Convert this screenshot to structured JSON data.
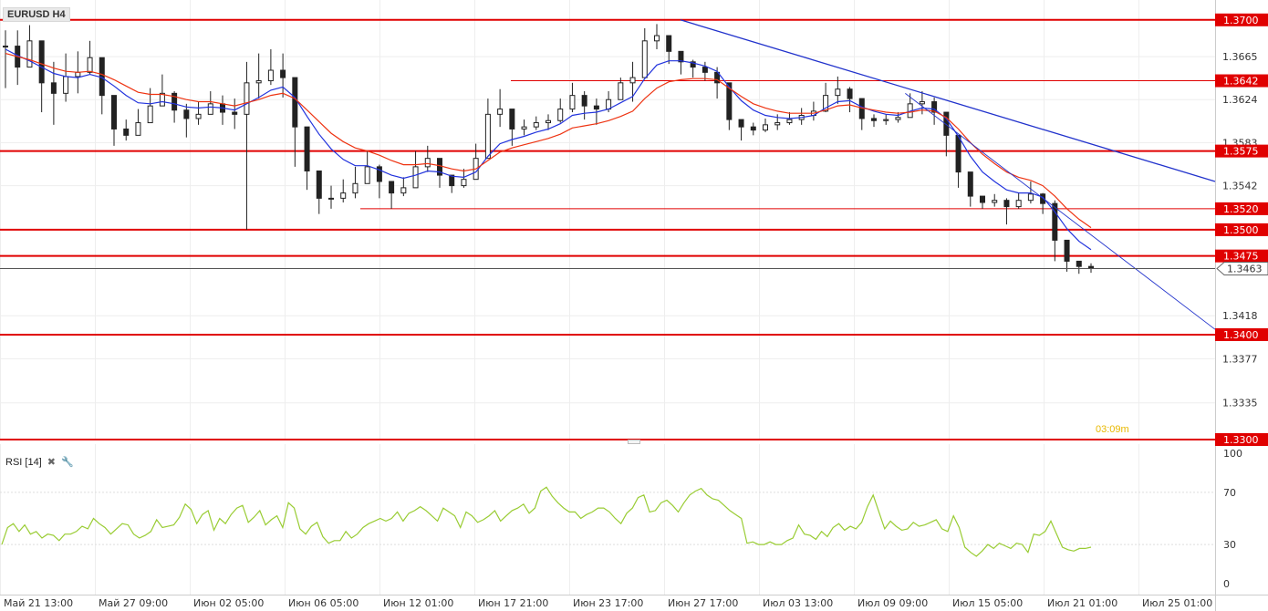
{
  "symbol": "EURUSD H4",
  "timer": "03:09m",
  "rsi": {
    "label": "RSI [14]",
    "close_icon": "close-icon",
    "settings_icon": "wrench-icon",
    "ticks": [
      "100",
      "70",
      "30",
      "0"
    ]
  },
  "time_labels": [
    "Май 21 13:00",
    "Май 27 09:00",
    "Июн 02 05:00",
    "Июн 06 05:00",
    "Июн 12 01:00",
    "Июн 17 21:00",
    "Июн 23 17:00",
    "Июн 27 17:00",
    "Июл 03 13:00",
    "Июл 09 09:00",
    "Июл 15 05:00",
    "Июл 21 01:00",
    "Июл 25 01:00"
  ],
  "price_ticks": [
    "1.3665",
    "1.3624",
    "1.3583",
    "1.3542",
    "1.3418",
    "1.3377",
    "1.3335"
  ],
  "level_labels": [
    "1.3700",
    "1.3642",
    "1.3575",
    "1.3520",
    "1.3500",
    "1.3475",
    "1.3400",
    "1.3300"
  ],
  "current_price": "1.3463",
  "colors": {
    "level": "#e00000",
    "trendline": "#2233cc",
    "ma_fast": "#2233dd",
    "ma_slow": "#ee3311",
    "rsi_line": "#99cc33",
    "timer": "#e8b800"
  },
  "chart_data": {
    "type": "candlestick",
    "series": [
      {
        "name": "EURUSD H4",
        "value_points": [
          [
            1.369,
            1.3675,
            1.3635
          ],
          [
            1.369,
            1.3655,
            1.3638
          ],
          [
            1.3695,
            1.368,
            1.366
          ],
          [
            1.367,
            1.364,
            1.3612
          ],
          [
            1.366,
            1.363,
            1.36
          ],
          [
            1.3668,
            1.3646,
            1.3622
          ],
          [
            1.367,
            1.365,
            1.363
          ],
          [
            1.368,
            1.3664,
            1.3648
          ],
          [
            1.3652,
            1.3628,
            1.361
          ],
          [
            1.3618,
            1.3596,
            1.358
          ],
          [
            1.3605,
            1.359,
            1.3585
          ],
          [
            1.3615,
            1.3602,
            1.3594
          ],
          [
            1.3635,
            1.3618,
            1.3605
          ],
          [
            1.3648,
            1.363,
            1.3622
          ],
          [
            1.3632,
            1.3614,
            1.3602
          ],
          [
            1.362,
            1.3606,
            1.3588
          ],
          [
            1.3622,
            1.361,
            1.36
          ],
          [
            1.3632,
            1.362,
            1.3612
          ],
          [
            1.3628,
            1.3612,
            1.36
          ],
          [
            1.3625,
            1.361,
            1.3596
          ],
          [
            1.366,
            1.364,
            1.35
          ],
          [
            1.3668,
            1.3642,
            1.3625
          ],
          [
            1.3672,
            1.3652,
            1.3638
          ],
          [
            1.3668,
            1.3645,
            1.3626
          ],
          [
            1.3634,
            1.3598,
            1.356
          ],
          [
            1.358,
            1.3556,
            1.3538
          ],
          [
            1.355,
            1.353,
            1.3515
          ],
          [
            1.3542,
            1.353,
            1.352
          ],
          [
            1.3548,
            1.3535,
            1.3526
          ],
          [
            1.356,
            1.3544,
            1.353
          ],
          [
            1.3575,
            1.356,
            1.3548
          ],
          [
            1.3562,
            1.3546,
            1.353
          ],
          [
            1.3546,
            1.3535,
            1.352
          ],
          [
            1.355,
            1.354,
            1.3532
          ],
          [
            1.3575,
            1.356,
            1.3545
          ],
          [
            1.358,
            1.3568,
            1.3555
          ],
          [
            1.3566,
            1.3552,
            1.354
          ],
          [
            1.355,
            1.3542,
            1.3535
          ],
          [
            1.3558,
            1.3548,
            1.354
          ],
          [
            1.3582,
            1.3568,
            1.3552
          ],
          [
            1.3625,
            1.361,
            1.357
          ],
          [
            1.3634,
            1.3615,
            1.3598
          ],
          [
            1.361,
            1.3596,
            1.358
          ],
          [
            1.3605,
            1.3598,
            1.359
          ],
          [
            1.3608,
            1.3602,
            1.3595
          ],
          [
            1.361,
            1.3604,
            1.3595
          ],
          [
            1.3625,
            1.3615,
            1.3602
          ],
          [
            1.364,
            1.3628,
            1.3612
          ],
          [
            1.3632,
            1.3618,
            1.3605
          ],
          [
            1.3625,
            1.3615,
            1.36
          ],
          [
            1.3632,
            1.3624,
            1.3612
          ],
          [
            1.3645,
            1.364,
            1.363
          ],
          [
            1.366,
            1.3645,
            1.3622
          ],
          [
            1.3692,
            1.368,
            1.366
          ],
          [
            1.3696,
            1.3685,
            1.3672
          ],
          [
            1.3685,
            1.367,
            1.3658
          ],
          [
            1.3666,
            1.366,
            1.3648
          ],
          [
            1.3662,
            1.3655,
            1.3645
          ],
          [
            1.366,
            1.365,
            1.3642
          ],
          [
            1.3655,
            1.364,
            1.3625
          ],
          [
            1.362,
            1.3605,
            1.3595
          ],
          [
            1.3605,
            1.3598,
            1.3585
          ],
          [
            1.3602,
            1.3595,
            1.359
          ],
          [
            1.3606,
            1.36,
            1.3593
          ],
          [
            1.361,
            1.3602,
            1.3595
          ],
          [
            1.3612,
            1.3605,
            1.36
          ],
          [
            1.3616,
            1.3609,
            1.36
          ],
          [
            1.3622,
            1.3613,
            1.3604
          ],
          [
            1.364,
            1.3628,
            1.3612
          ],
          [
            1.3646,
            1.3634,
            1.362
          ],
          [
            1.3636,
            1.3625,
            1.3612
          ],
          [
            1.3618,
            1.3606,
            1.3595
          ],
          [
            1.361,
            1.3604,
            1.3598
          ],
          [
            1.361,
            1.3605,
            1.36
          ],
          [
            1.3612,
            1.3607,
            1.3602
          ],
          [
            1.363,
            1.362,
            1.3608
          ],
          [
            1.3632,
            1.3622,
            1.361
          ],
          [
            1.3626,
            1.3612,
            1.36
          ],
          [
            1.3612,
            1.359,
            1.357
          ],
          [
            1.3572,
            1.3555,
            1.354
          ],
          [
            1.3545,
            1.3532,
            1.3522
          ],
          [
            1.3532,
            1.3526,
            1.352
          ],
          [
            1.3534,
            1.3528,
            1.3522
          ],
          [
            1.353,
            1.3522,
            1.3505
          ],
          [
            1.3535,
            1.3528,
            1.352
          ],
          [
            1.3546,
            1.3534,
            1.3525
          ],
          [
            1.3535,
            1.3525,
            1.3515
          ],
          [
            1.3528,
            1.349,
            1.347
          ],
          [
            1.3485,
            1.347,
            1.346
          ],
          [
            1.347,
            1.3465,
            1.3458
          ],
          [
            1.3468,
            1.3463,
            1.3459
          ]
        ]
      }
    ],
    "moving_averages": [
      {
        "values": [
          1.3672,
          1.3666,
          1.3661,
          1.3655,
          1.3649,
          1.3646,
          1.3645,
          1.3648,
          1.3645,
          1.3637,
          1.3628,
          1.3621,
          1.362,
          1.3622,
          1.362,
          1.3617,
          1.3616,
          1.3617,
          1.3616,
          1.3614,
          1.362,
          1.3626,
          1.3633,
          1.3636,
          1.3626,
          1.3608,
          1.3591,
          1.3577,
          1.3567,
          1.3561,
          1.3561,
          1.3557,
          1.3552,
          1.3549,
          1.3552,
          1.3556,
          1.3555,
          1.3551,
          1.355,
          1.3555,
          1.357,
          1.3582,
          1.3586,
          1.3589,
          1.3593,
          1.3596,
          1.3601,
          1.3609,
          1.3611,
          1.3612,
          1.3615,
          1.3621,
          1.3627,
          1.3644,
          1.3657,
          1.3661,
          1.3661,
          1.3659,
          1.3656,
          1.3651,
          1.3636,
          1.3623,
          1.3614,
          1.3609,
          1.3607,
          1.3606,
          1.3607,
          1.3609,
          1.3616,
          1.3622,
          1.3623,
          1.3617,
          1.3613,
          1.361,
          1.3609,
          1.3613,
          1.3616,
          1.3615,
          1.3606,
          1.3589,
          1.357,
          1.3555,
          1.3546,
          1.3538,
          1.3535,
          1.3535,
          1.3531,
          1.3517,
          1.3501,
          1.3489,
          1.3481
        ]
      },
      {
        "values": [
          1.3668,
          1.3665,
          1.3662,
          1.3658,
          1.3654,
          1.3651,
          1.365,
          1.3651,
          1.3648,
          1.3643,
          1.3637,
          1.3631,
          1.3629,
          1.3629,
          1.3627,
          1.3624,
          1.3622,
          1.3622,
          1.362,
          1.3618,
          1.3621,
          1.3624,
          1.3628,
          1.363,
          1.3625,
          1.3614,
          1.3603,
          1.3592,
          1.3584,
          1.3578,
          1.3575,
          1.3571,
          1.3566,
          1.3562,
          1.3562,
          1.3563,
          1.3561,
          1.3558,
          1.3556,
          1.3558,
          1.3566,
          1.3574,
          1.3578,
          1.3581,
          1.3584,
          1.3587,
          1.3591,
          1.3597,
          1.3599,
          1.3601,
          1.3604,
          1.3608,
          1.3613,
          1.3625,
          1.3635,
          1.3641,
          1.3643,
          1.3644,
          1.3644,
          1.3643,
          1.3635,
          1.3627,
          1.362,
          1.3616,
          1.3613,
          1.3611,
          1.3611,
          1.3611,
          1.3614,
          1.3618,
          1.3619,
          1.3616,
          1.3614,
          1.3612,
          1.3611,
          1.3612,
          1.3614,
          1.3613,
          1.3607,
          1.3596,
          1.3583,
          1.3572,
          1.3563,
          1.3555,
          1.355,
          1.3547,
          1.3542,
          1.3532,
          1.352,
          1.351,
          1.3502
        ]
      }
    ],
    "horizontal_levels": [
      1.37,
      1.3642,
      1.3575,
      1.352,
      1.35,
      1.3475,
      1.34,
      1.33
    ],
    "trendlines": [
      {
        "from": [
          0.56,
          1.37
        ],
        "to": [
          1.0,
          1.3546
        ]
      },
      {
        "from": [
          0.745,
          1.363
        ],
        "to": [
          1.0,
          1.3405
        ]
      }
    ],
    "price_axis": {
      "min": 1.33,
      "max": 1.3712
    },
    "rsi_values": [
      30,
      43,
      46,
      40,
      45,
      38,
      40,
      35,
      38,
      37,
      33,
      38,
      38,
      40,
      44,
      42,
      50,
      46,
      43,
      38,
      42,
      46,
      45,
      38,
      35,
      37,
      40,
      49,
      43,
      44,
      45,
      51,
      61,
      57,
      46,
      53,
      56,
      41,
      50,
      46,
      53,
      58,
      60,
      47,
      51,
      56,
      45,
      49,
      52,
      43,
      62,
      58,
      42,
      38,
      44,
      47,
      36,
      31,
      33,
      33,
      40,
      35,
      38,
      43,
      46,
      48,
      50,
      48,
      50,
      55,
      48,
      54,
      56,
      59,
      56,
      52,
      48,
      58,
      55,
      52,
      43,
      55,
      52,
      47,
      49,
      52,
      56,
      48,
      52,
      56,
      58,
      61,
      54,
      58,
      71,
      74,
      67,
      62,
      58,
      55,
      55,
      50,
      53,
      55,
      58,
      58,
      55,
      50,
      46,
      54,
      58,
      66,
      68,
      55,
      56,
      62,
      64,
      60,
      55,
      62,
      68,
      71,
      73,
      68,
      65,
      64,
      60,
      56,
      53,
      50,
      31,
      32,
      30,
      30,
      32,
      30,
      30,
      33,
      35,
      45,
      38,
      37,
      34,
      40,
      36,
      43,
      46,
      41,
      44,
      42,
      47,
      59,
      68,
      55,
      42,
      48,
      44,
      41,
      42,
      47,
      44,
      45,
      47,
      49,
      42,
      40,
      52,
      43,
      28,
      24,
      21,
      25,
      30,
      27,
      31,
      29,
      27,
      31,
      30,
      24,
      38,
      37,
      40,
      48,
      38,
      28,
      26,
      25,
      27,
      27,
      28
    ],
    "rsi_ylim": [
      0,
      100
    ],
    "grid": true,
    "legend": "none"
  }
}
